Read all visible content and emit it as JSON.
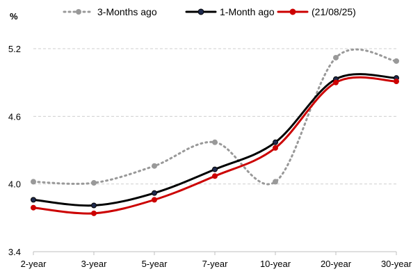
{
  "chart_data": {
    "type": "line",
    "title": "",
    "xlabel": "",
    "ylabel": "%",
    "categories": [
      "2-year",
      "3-year",
      "5-year",
      "7-year",
      "10-year",
      "20-year",
      "30-year"
    ],
    "ylim": [
      3.4,
      5.2
    ],
    "yticks": [
      3.4,
      4.0,
      4.6,
      5.2
    ],
    "ytick_labels": [
      "3.4",
      "4.0",
      "4.6",
      "5.2"
    ],
    "grid": "horizontal dashed",
    "legend_position": "top",
    "series": [
      {
        "name": "3-Months ago",
        "values": [
          4.02,
          4.01,
          4.16,
          4.37,
          4.02,
          5.12,
          5.09
        ],
        "color": "#999999",
        "style": "dotted"
      },
      {
        "name": "1-Month ago",
        "values": [
          3.86,
          3.81,
          3.92,
          4.13,
          4.37,
          4.93,
          4.94
        ],
        "color": "#000000",
        "marker_color": "#1f2a4d",
        "style": "solid"
      },
      {
        "name": "(21/08/25)",
        "values": [
          3.79,
          3.74,
          3.86,
          4.07,
          4.32,
          4.9,
          4.91
        ],
        "color": "#cc0000",
        "marker_color": "#cc0000",
        "style": "solid"
      }
    ]
  }
}
